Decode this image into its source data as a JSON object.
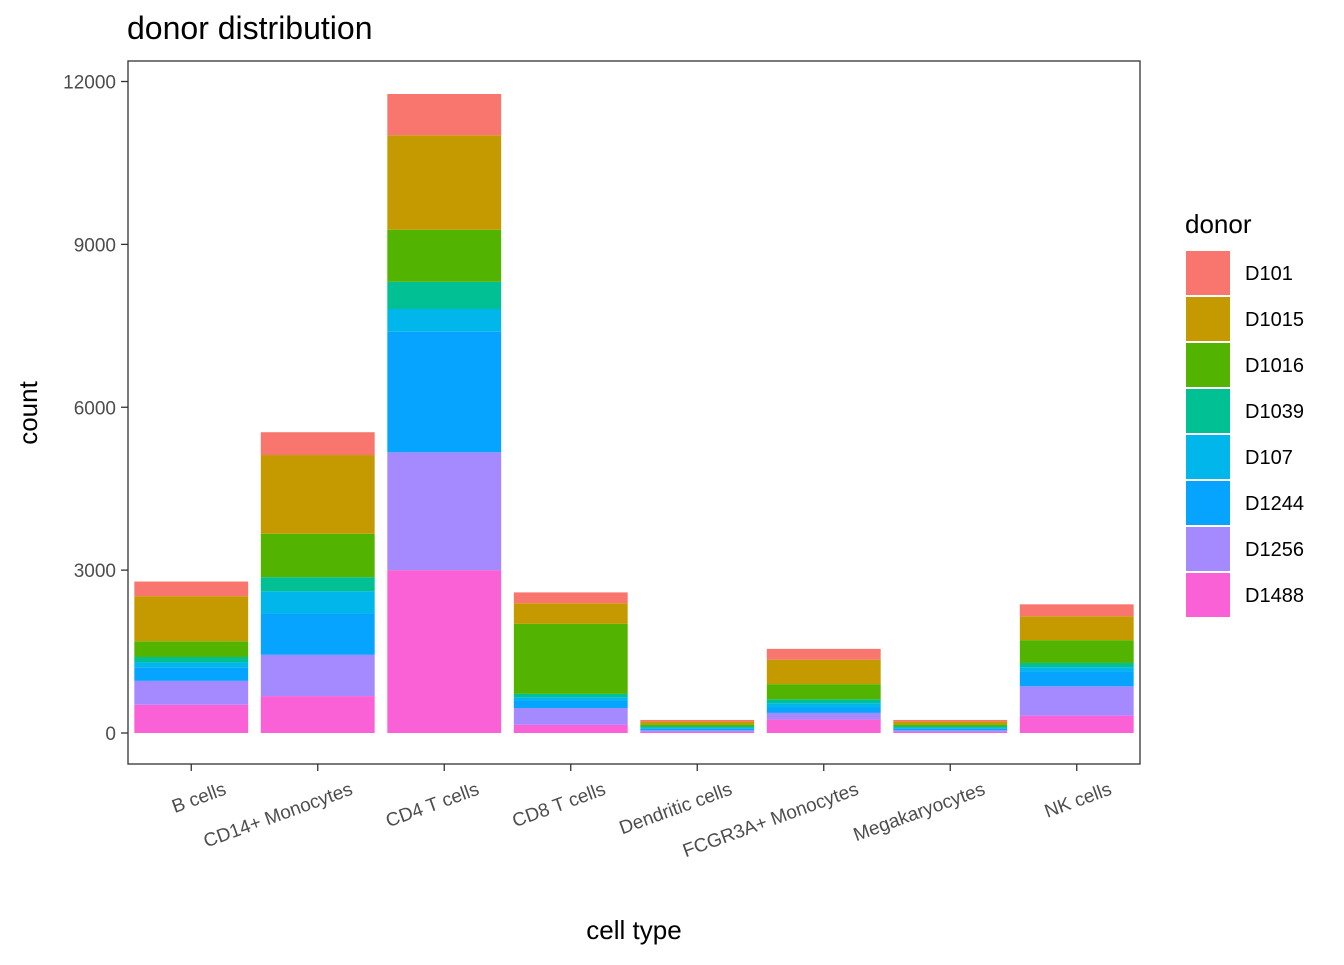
{
  "chart_data": {
    "type": "bar",
    "stacked": true,
    "title": "donor distribution",
    "xlabel": "cell type",
    "ylabel": "count",
    "ylim": [
      -500,
      12350
    ],
    "yticks": [
      0,
      3000,
      6000,
      9000,
      12000
    ],
    "ytick_labels": [
      "0",
      "3000",
      "6000",
      "9000",
      "12000"
    ],
    "grid": false,
    "legend_title": "donor",
    "legend_position": "right",
    "categories": [
      "B cells",
      "CD14+ Monocytes",
      "CD4 T cells",
      "CD8 T cells",
      "Dendritic cells",
      "FCGR3A+ Monocytes",
      "Megakaryocytes",
      "NK cells"
    ],
    "series": [
      {
        "name": "D101",
        "color": "#F8766D",
        "values": [
          270,
          420,
          760,
          200,
          30,
          200,
          30,
          220
        ]
      },
      {
        "name": "D1015",
        "color": "#C49A00",
        "values": [
          830,
          1450,
          1740,
          380,
          50,
          450,
          50,
          440
        ]
      },
      {
        "name": "D1016",
        "color": "#53B400",
        "values": [
          290,
          800,
          960,
          1290,
          40,
          280,
          40,
          420
        ]
      },
      {
        "name": "D1039",
        "color": "#00C094",
        "values": [
          100,
          260,
          500,
          60,
          20,
          70,
          20,
          80
        ]
      },
      {
        "name": "D107",
        "color": "#00B6EB",
        "values": [
          90,
          410,
          420,
          60,
          20,
          80,
          20,
          70
        ]
      },
      {
        "name": "D1244",
        "color": "#06A4FF",
        "values": [
          250,
          760,
          2220,
          140,
          30,
          100,
          30,
          280
        ]
      },
      {
        "name": "D1256",
        "color": "#A58AFF",
        "values": [
          440,
          760,
          2170,
          310,
          30,
          120,
          30,
          540
        ]
      },
      {
        "name": "D1488",
        "color": "#FB61D7",
        "values": [
          520,
          680,
          3000,
          150,
          20,
          250,
          20,
          320
        ]
      }
    ]
  }
}
